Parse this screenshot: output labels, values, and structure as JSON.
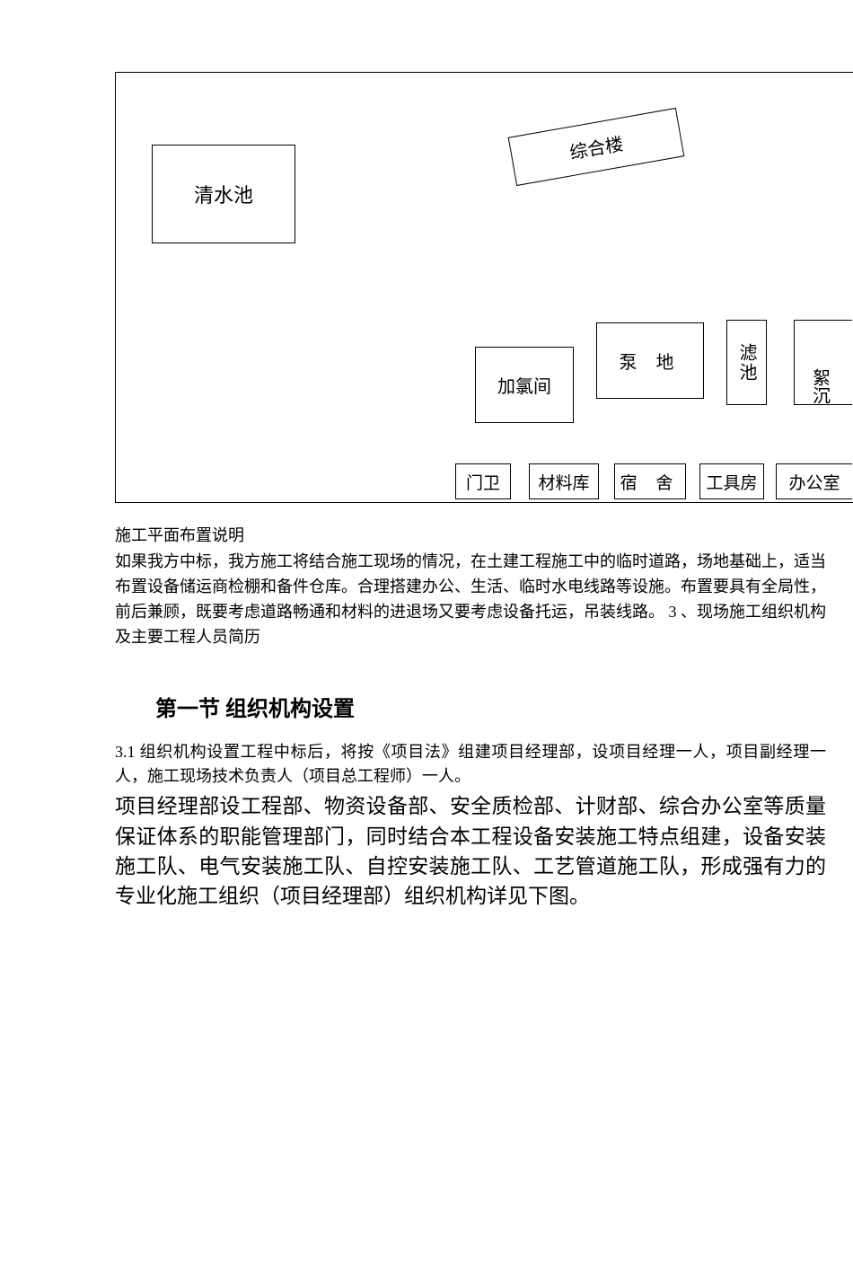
{
  "diagram": {
    "boxes": {
      "clearwater": "清水池",
      "complex": "综合楼",
      "chlorine": "加氯间",
      "pump": "泵 地",
      "filter": "滤池",
      "partial": "絮沉",
      "gate": "门卫",
      "material": "材料库",
      "dorm": "宿 舍",
      "tool": "工具房",
      "office": "办公室"
    }
  },
  "description": {
    "title": "施工平面布置说明",
    "body": "如果我方中标，我方施工将结合施工现场的情况，在土建工程施工中的临时道路，场地基础上，适当布置设备储运商检棚和备件仓库。合理搭建办公、生活、临时水电线路等设施。布置要具有全局性，前后兼顾，既要考虑道路畅通和材料的进退场又要考虑设备托运，吊装线路。 3 、现场施工组织机构及主要工程人员简历"
  },
  "section": {
    "heading": "第一节 组织机构设置",
    "para1": "3.1 组织机构设置工程中标后，将按《项目法》组建项目经理部，设项目经理一人，项目副经理一人，施工现场技术负责人（项目总工程师）一人。",
    "para2": "项目经理部设工程部、物资设备部、安全质检部、计财部、综合办公室等质量保证体系的职能管理部门，同时结合本工程设备安装施工特点组建，设备安装施工队、电气安装施工队、自控安装施工队、工艺管道施工队，形成强有力的专业化施工组织（项目经理部）组织机构详见下图。"
  }
}
